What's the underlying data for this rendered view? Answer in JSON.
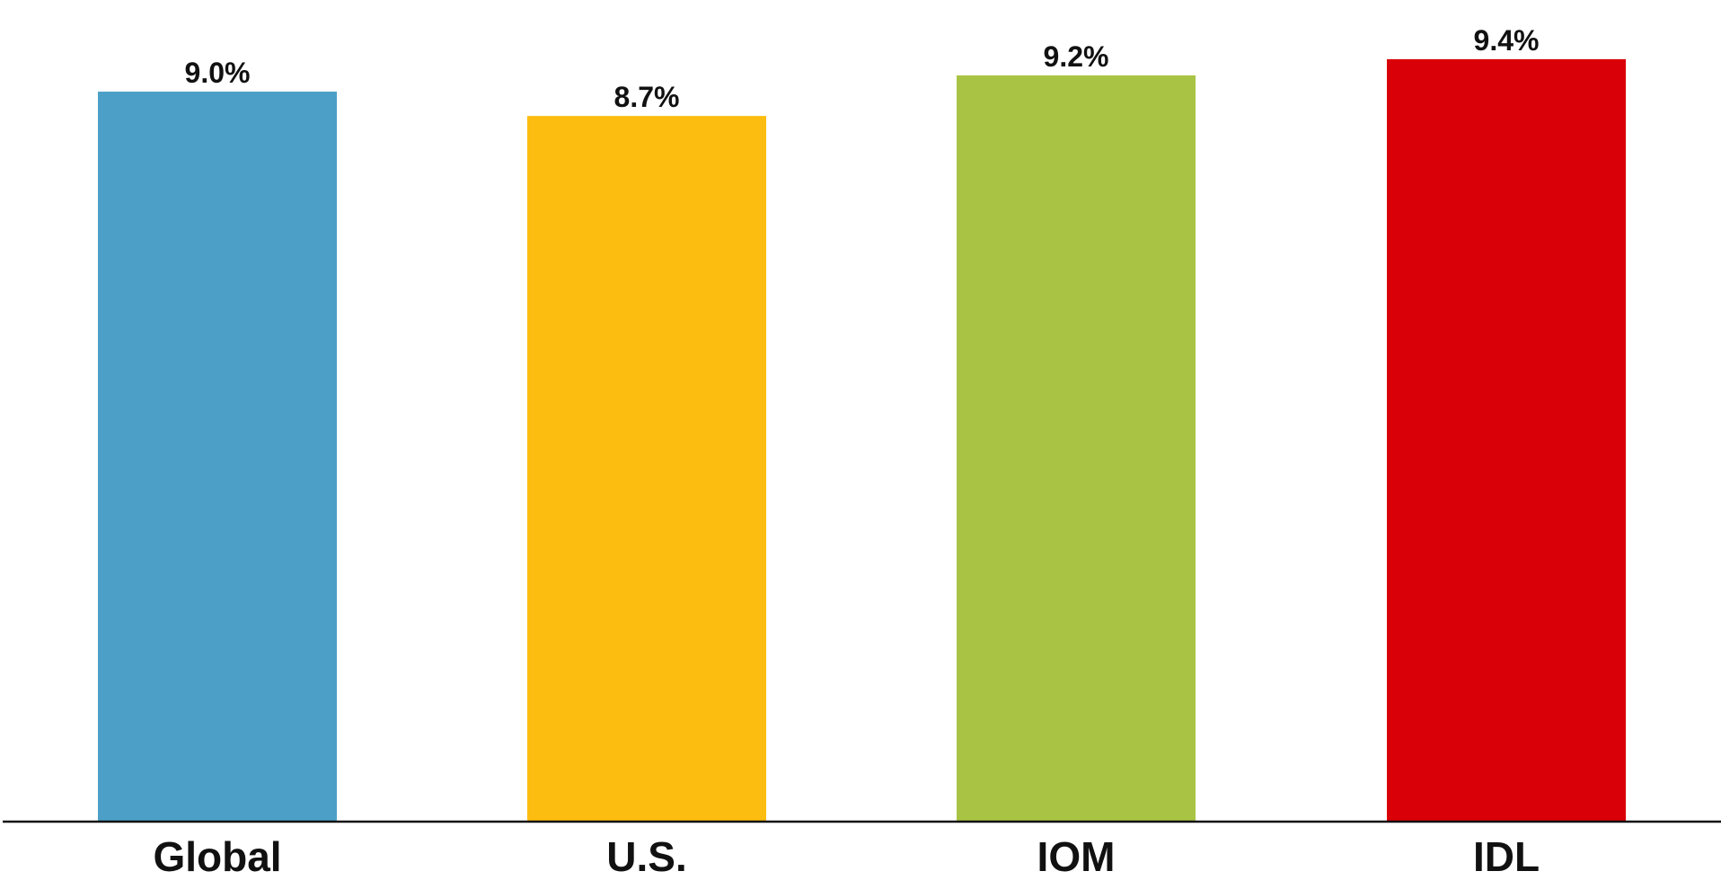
{
  "chart_data": {
    "type": "bar",
    "categories": [
      "Global",
      "U.S.",
      "IOM",
      "IDL"
    ],
    "values": [
      9.0,
      8.7,
      9.2,
      9.4
    ],
    "value_labels": [
      "9.0%",
      "8.7%",
      "9.2%",
      "9.4%"
    ],
    "colors": [
      "#4ca0c8",
      "#fdbd10",
      "#a9c444",
      "#da0008"
    ],
    "baseline_color": "#111111",
    "title": "",
    "xlabel": "",
    "ylabel": "",
    "ylim": [
      0,
      9.7
    ],
    "grid": false,
    "legend": "none"
  }
}
